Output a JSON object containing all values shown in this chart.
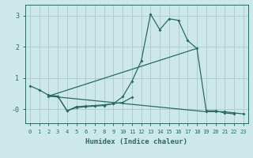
{
  "xlabel": "Humidex (Indice chaleur)",
  "bg_color": "#cce8e8",
  "line_color": "#2a6a60",
  "grid_color": "#b0cccc",
  "xlim": [
    -0.5,
    23.5
  ],
  "ylim": [
    -0.45,
    3.35
  ],
  "yticks": [
    0,
    1,
    2,
    3
  ],
  "ytick_labels": [
    "-0",
    "1",
    "2",
    "3"
  ],
  "xticks": [
    0,
    1,
    2,
    3,
    4,
    5,
    6,
    7,
    8,
    9,
    10,
    11,
    12,
    13,
    14,
    15,
    16,
    17,
    18,
    19,
    20,
    21,
    22,
    23
  ],
  "line1_x": [
    0,
    1,
    2,
    3,
    4,
    5,
    6,
    7,
    8,
    9,
    10,
    11,
    12,
    13,
    14,
    15,
    16,
    17,
    18,
    19,
    20,
    21,
    22,
    23
  ],
  "line1_y": [
    0.75,
    0.62,
    0.45,
    0.42,
    -0.05,
    0.05,
    0.08,
    0.1,
    0.12,
    0.18,
    0.4,
    0.9,
    1.55,
    3.05,
    2.55,
    2.9,
    2.85,
    2.2,
    1.95,
    -0.05,
    -0.05,
    -0.12,
    -0.15,
    null
  ],
  "line2_x": [
    2,
    3,
    4,
    5,
    6,
    7,
    8,
    9,
    10,
    11,
    19,
    20,
    21,
    22,
    23
  ],
  "line2_y": [
    0.42,
    0.42,
    -0.05,
    0.08,
    0.1,
    0.12,
    0.14,
    0.18,
    0.22,
    0.38,
    -0.08,
    -0.08,
    -0.08,
    -0.12,
    -0.15
  ],
  "line3_x": [
    2,
    19
  ],
  "line3_y": [
    0.42,
    -0.08
  ],
  "line4_x": [
    2,
    18
  ],
  "line4_y": [
    0.42,
    1.95
  ]
}
